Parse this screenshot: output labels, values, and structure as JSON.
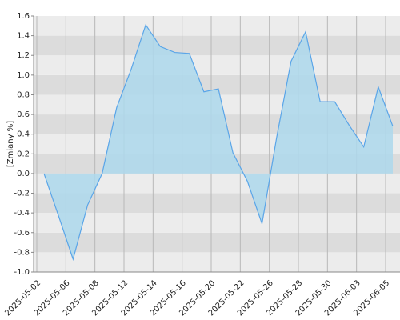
{
  "chart_data": {
    "type": "area",
    "y_label": "[Zmiany %]",
    "categories": [
      "2025-05-02",
      null,
      "2025-05-06",
      null,
      "2025-05-08",
      null,
      "2025-05-12",
      null,
      "2025-05-14",
      null,
      "2025-05-16",
      null,
      "2025-05-20",
      null,
      "2025-05-22",
      null,
      "2025-05-26",
      null,
      "2025-05-28",
      null,
      "2025-05-30",
      null,
      "2025-06-03",
      null,
      "2025-06-05"
    ],
    "values": [
      0.0,
      -0.43,
      -0.87,
      -0.32,
      0.0,
      0.67,
      1.06,
      1.51,
      1.29,
      1.23,
      1.22,
      0.83,
      0.86,
      0.21,
      -0.08,
      -0.51,
      0.36,
      1.14,
      1.44,
      0.73,
      0.73,
      0.49,
      0.27,
      0.88,
      0.48
    ],
    "color": "#5aa5e8",
    "fill_color": "#add8ec",
    "ylim": [
      -1.0,
      1.6
    ],
    "yticks": [
      {
        "value": -1.0,
        "label": "-1.0"
      },
      -0.8,
      -0.6,
      -0.4,
      -0.2,
      {
        "value": 0,
        "label": "0.0"
      },
      0.2,
      0.4,
      0.6,
      0.8,
      {
        "value": 1.0,
        "label": "1.0"
      },
      1.2,
      1.4,
      1.6
    ],
    "grid": true
  }
}
